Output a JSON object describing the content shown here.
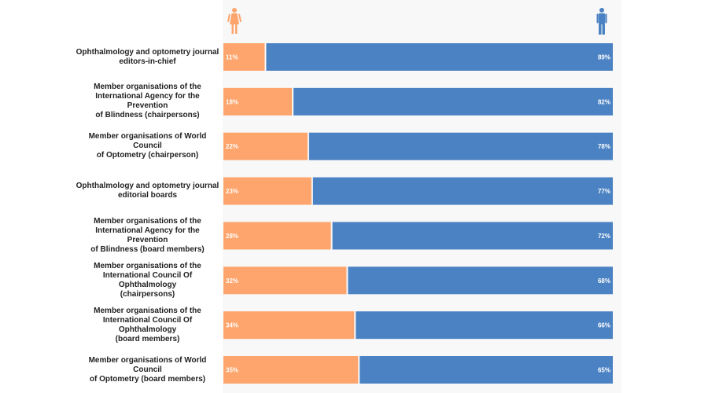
{
  "chart_data": {
    "type": "bar",
    "orientation": "horizontal",
    "stacked": true,
    "categories": [
      "Ophthalmology and optometry journal editors-in-chief",
      "Member organisations of the International Agency for the Prevention of Blindness (chairpersons)",
      "Member organisations of World Council of Optometry (chairperson)",
      "Ophthalmology and optometry journal editorial boards",
      "Member organisations of the International Agency for the Prevention of Blindness (board members)",
      "Member organisations of the International Council Of Ophthalmology (chairpersons)",
      "Member organisations of the International Council Of Ophthalmology (board members)",
      "Member organisations of World Council of Optometry (board members)"
    ],
    "series": [
      {
        "legend_icon": "female-icon",
        "color": "#fda56c",
        "values": [
          11,
          18,
          22,
          23,
          28,
          32,
          34,
          35
        ],
        "labels": [
          "11%",
          "18%",
          "22%",
          "23%",
          "28%",
          "32%",
          "34%",
          "35%"
        ]
      },
      {
        "legend_icon": "male-icon",
        "color": "#4b82c3",
        "values": [
          89,
          82,
          78,
          77,
          72,
          68,
          66,
          65
        ],
        "labels": [
          "89%",
          "82%",
          "78%",
          "77%",
          "72%",
          "68%",
          "66%",
          "65%"
        ]
      }
    ],
    "xlim": [
      0,
      100
    ],
    "grid": false,
    "legend": "top icons (female left, male right)"
  }
}
